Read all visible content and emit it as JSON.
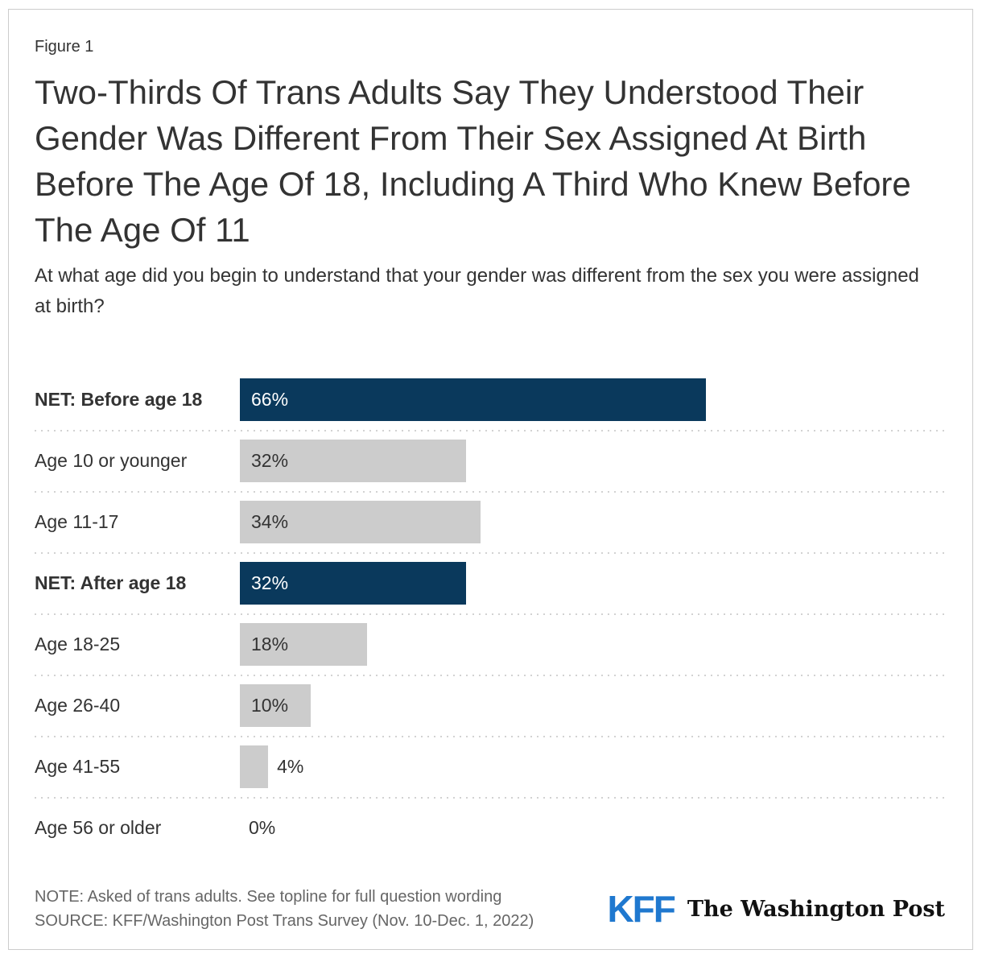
{
  "figure_label": "Figure 1",
  "title": "Two-Thirds Of Trans Adults Say They Understood Their Gender Was Different From Their Sex Assigned At Birth Before The Age Of 18, Including A Third Who Knew Before The Age Of 11",
  "subtitle": "At what age did you begin to understand that your gender was different from the sex you were assigned at birth?",
  "chart_data": {
    "type": "bar",
    "orientation": "horizontal",
    "xlim": [
      0,
      100
    ],
    "unit": "%",
    "grid": "dotted row separators",
    "legend": "none",
    "colors": {
      "net_bar": "#0a395c",
      "regular_bar": "#cccccc",
      "value_on_net": "#ffffff",
      "value_on_regular": "#333333",
      "separator": "#d2d2d2"
    },
    "rows": [
      {
        "label": "NET: Before age 18",
        "value": 66,
        "display": "66%",
        "net": true,
        "value_position": "inside"
      },
      {
        "label": "Age 10 or younger",
        "value": 32,
        "display": "32%",
        "net": false,
        "value_position": "inside"
      },
      {
        "label": "Age 11-17",
        "value": 34,
        "display": "34%",
        "net": false,
        "value_position": "inside"
      },
      {
        "label": "NET: After age 18",
        "value": 32,
        "display": "32%",
        "net": true,
        "value_position": "inside"
      },
      {
        "label": "Age 18-25",
        "value": 18,
        "display": "18%",
        "net": false,
        "value_position": "inside"
      },
      {
        "label": "Age 26-40",
        "value": 10,
        "display": "10%",
        "net": false,
        "value_position": "inside"
      },
      {
        "label": "Age 41-55",
        "value": 4,
        "display": "4%",
        "net": false,
        "value_position": "outside"
      },
      {
        "label": "Age 56 or older",
        "value": 0,
        "display": "0%",
        "net": false,
        "value_position": "outside"
      }
    ]
  },
  "footer": {
    "note": "NOTE: Asked of trans adults. See topline for full question wording",
    "source": "SOURCE: KFF/Washington Post Trans Survey (Nov. 10-Dec. 1, 2022)",
    "kff_logo_text": "KFF",
    "wapo_logo_text": "The Washington Post"
  }
}
